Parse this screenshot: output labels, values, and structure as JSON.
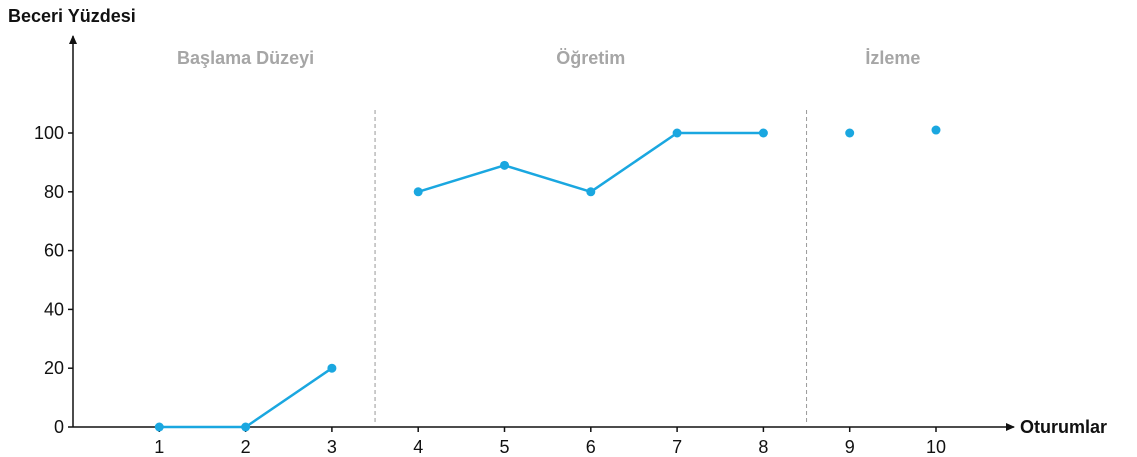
{
  "chart_data": {
    "type": "line",
    "ylabel": "Beceri Yüzdesi",
    "xlabel": "Oturumlar",
    "xlim": [
      0,
      11
    ],
    "ylim": [
      0,
      100
    ],
    "x_ticks": [
      "1",
      "2",
      "3",
      "4",
      "5",
      "6",
      "7",
      "8",
      "9",
      "10"
    ],
    "y_ticks": [
      "0",
      "20",
      "40",
      "60",
      "80",
      "100"
    ],
    "phases": [
      {
        "name": "Başlama Düzeyi",
        "x_range": [
          1,
          3
        ]
      },
      {
        "name": "Öğretim",
        "x_range": [
          4,
          8
        ]
      },
      {
        "name": "İzleme",
        "x_range": [
          9,
          10
        ]
      }
    ],
    "phase_dividers_x": [
      3.5,
      8.5
    ],
    "series": [
      {
        "segments": [
          {
            "x": [
              1,
              2,
              3
            ],
            "y": [
              0,
              0,
              20
            ],
            "connected": true
          },
          {
            "x": [
              4,
              5,
              6,
              7,
              8
            ],
            "y": [
              80,
              89,
              80,
              100,
              100
            ],
            "connected": true
          },
          {
            "x": [
              9,
              10
            ],
            "y": [
              100,
              101
            ],
            "connected": false
          }
        ]
      }
    ],
    "colors": {
      "series": "#1aa7e0",
      "axis": "#111111",
      "divider": "#999999",
      "phase_label": "#a6a6a6"
    },
    "grid": false,
    "legend": "none"
  }
}
